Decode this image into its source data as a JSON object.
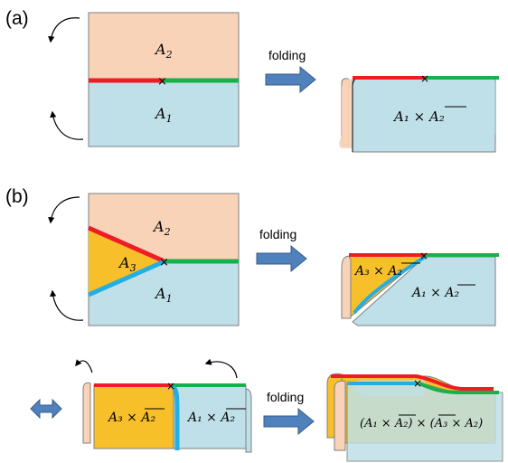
{
  "panel_labels": {
    "a": "(a)",
    "b": "(b)"
  },
  "arrow_text": "folding",
  "regions": {
    "A1": "A",
    "A2": "A",
    "A3": "A",
    "sub1": "1",
    "sub2": "2",
    "sub3": "3"
  },
  "products": {
    "a_result": "A₁ × A₂",
    "b_top_yellow": "A₃ × A₂",
    "b_top_blue": "A₁ × A₂",
    "b_bottom_yellow": "A₃ × A₂",
    "b_bottom_blue": "A₁ × A₂",
    "b_final": "(A₁ × A₂) × (A₃ × A₂)"
  },
  "colors": {
    "peach": "#f8d3b8",
    "blue": "#bfe0e8",
    "yellow": "#f7bf2a",
    "red": "#ee1c25",
    "green": "#18b04b",
    "cyan": "#25aee3",
    "arrow": "#4f81bd"
  }
}
